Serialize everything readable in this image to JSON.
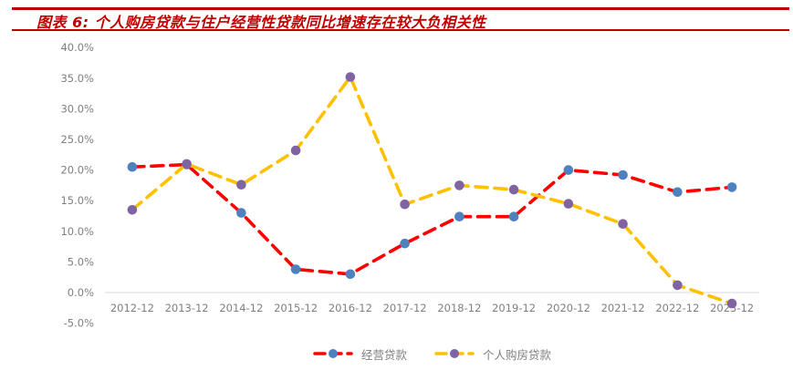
{
  "header": {
    "title": "图表 6: 个人购房贷款与住户经营性贷款同比增速存在较大负相关性",
    "accent_color": "#C00000"
  },
  "chart_data": {
    "type": "line",
    "title": "个人购房贷款与住户经营性贷款同比增速存在较大负相关性",
    "categories": [
      "2012-12",
      "2013-12",
      "2014-12",
      "2015-12",
      "2016-12",
      "2017-12",
      "2018-12",
      "2019-12",
      "2020-12",
      "2021-12",
      "2022-12",
      "2023-12"
    ],
    "series": [
      {
        "name": "经营贷款",
        "values": [
          20.5,
          20.9,
          13.0,
          3.8,
          3.0,
          8.0,
          12.4,
          12.4,
          20.0,
          19.2,
          16.4,
          17.2
        ],
        "line_color": "#FF0000",
        "marker_color": "#4E81BD",
        "line_style": "dashed"
      },
      {
        "name": "个人购房贷款",
        "values": [
          13.5,
          21.0,
          17.6,
          23.2,
          35.2,
          14.4,
          17.5,
          16.8,
          14.5,
          11.2,
          1.2,
          -1.8
        ],
        "line_color": "#FFC000",
        "marker_color": "#8064A2",
        "line_style": "dashed"
      }
    ],
    "xlabel": "",
    "ylabel": "",
    "ylim": [
      -5,
      40
    ],
    "ytick_step": 5,
    "ytick_labels": [
      "40.0%",
      "35.0%",
      "30.0%",
      "25.0%",
      "20.0%",
      "15.0%",
      "10.0%",
      "5.0%",
      "0.0%",
      "-5.0%"
    ],
    "grid": false,
    "legend_position": "bottom",
    "axis_text_color": "#7F7F7F",
    "axis_line_color": "#D9D9D9"
  }
}
